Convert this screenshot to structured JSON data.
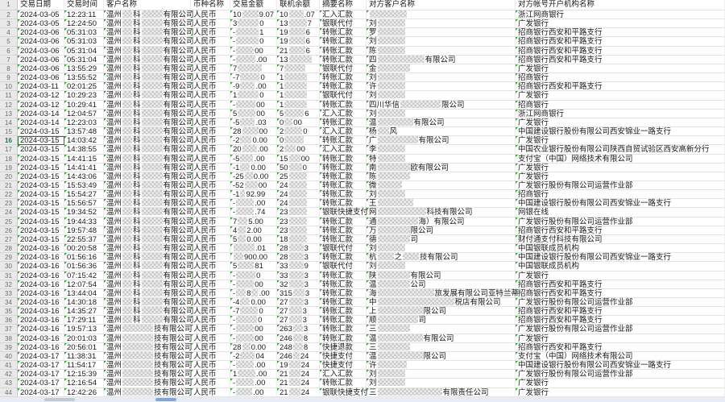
{
  "colors": {
    "error_indicator_green": "#2fa32f",
    "selection_green": "#217346"
  },
  "header": {
    "row_label": "1",
    "cols": [
      "交易日期",
      "交易时间",
      "客户名称",
      "币种名称",
      "交易金额",
      "联机余额",
      "摘要名称",
      "对方客户名称",
      "对方帐号开户机构名称"
    ]
  },
  "customer_patterns": {
    "p1": [
      "温州",
      12,
      "科",
      26,
      "有限公司"
    ],
    "p2": [
      "温州",
      38,
      "技有限公司"
    ]
  },
  "selected": {
    "row": 16,
    "col": "date"
  },
  "rows": [
    {
      "n": 2,
      "date": "2024-03-05",
      "time": "12:23:11",
      "cust": "p1",
      "cur": "人民币",
      "amt": [
        "10",
        20,
        "9.07"
      ],
      "bal": [
        "10",
        18,
        ".07"
      ],
      "sum": "汇入汇款",
      "cp": [
        46
      ],
      "bank": "浙江网商银行"
    },
    {
      "n": 3,
      "date": "2024-03-05",
      "time": "12:24:50",
      "cust": "p1",
      "cur": "人民币",
      "amt": [
        "3",
        26,
        "0"
      ],
      "bal": [
        "13",
        22,
        "7"
      ],
      "sum": "银联代付",
      "cp": [
        "刘",
        34
      ],
      "bank": "广发银行"
    },
    {
      "n": 4,
      "date": "2024-03-06",
      "time": "05:31:03",
      "cust": "p1",
      "cur": "人民币",
      "amt": [
        "-",
        28,
        "1"
      ],
      "bal": [
        "19",
        20,
        "6"
      ],
      "sum": "转账汇款",
      "cp": [
        "罗",
        34
      ],
      "bank": "招商银行西安和平路支行"
    },
    {
      "n": 5,
      "date": "2024-03-06",
      "time": "05:31:03",
      "cust": "p1",
      "cur": "人民币",
      "amt": [
        "-",
        28,
        "0"
      ],
      "bal": [
        "19",
        20,
        "6"
      ],
      "sum": "转账汇款",
      "cp": [
        "刘",
        34
      ],
      "bank": "招商银行西安和平路支行"
    },
    {
      "n": 6,
      "date": "2024-03-06",
      "time": "05:31:04",
      "cust": "p1",
      "cur": "人民币",
      "amt": [
        "-",
        22,
        "00"
      ],
      "bal": [
        "21",
        20,
        "6"
      ],
      "sum": "转账汇款",
      "cp": [
        "陈",
        34
      ],
      "bank": "招商银行西安和平路支行"
    },
    {
      "n": 7,
      "date": "2024-03-06",
      "time": "05:31:04",
      "cust": "p1",
      "cur": "人民币",
      "amt": [
        "-",
        24,
        ".00"
      ],
      "bal": [
        "13",
        28
      ],
      "sum": "转账汇款",
      "cp": [
        "四",
        58,
        "有限公司"
      ],
      "bank": "招商银行西安和平路支行"
    },
    {
      "n": 8,
      "date": "2024-03-06",
      "time": "13:55:29",
      "cust": "p1",
      "cur": "人民币",
      "amt": [
        "7",
        30
      ],
      "bal": [
        "7",
        26
      ],
      "sum": "银联代付",
      "cp": [
        "金",
        40
      ],
      "bank": "广发银行"
    },
    {
      "n": 9,
      "date": "2024-03-06",
      "time": "13:55:52",
      "cust": "p1",
      "cur": "人民币",
      "amt": [
        "-7",
        24,
        "0"
      ],
      "bal": [
        "1",
        28
      ],
      "sum": "转账汇款",
      "cp": [
        "刘",
        34
      ],
      "bank": "招商银行"
    },
    {
      "n": 10,
      "date": "2024-03-11",
      "time": "02:01:25",
      "cust": "p1",
      "cur": "人民币",
      "amt": [
        "-9",
        18,
        ".00"
      ],
      "bal": [
        "1",
        28
      ],
      "sum": "转账汇款",
      "cp": [
        "许",
        34
      ],
      "bank": "招商银行西安和平路支行"
    },
    {
      "n": 11,
      "date": "2024-03-12",
      "time": "10:29:23",
      "cust": "p1",
      "cur": "人民币",
      "amt": [
        "1",
        26,
        "0"
      ],
      "bal": [
        "1",
        28
      ],
      "sum": "银联代付",
      "cp": [
        "刘",
        34
      ],
      "bank": "广发银行"
    },
    {
      "n": 12,
      "date": "2024-03-12",
      "time": "10:29:41",
      "cust": "p1",
      "cur": "人民币",
      "amt": [
        "-",
        24,
        "00"
      ],
      "bal": [
        "1",
        28
      ],
      "sum": "转账汇款",
      "cp": [
        "四川华信",
        50,
        "限公司"
      ],
      "bank": "招商银行"
    },
    {
      "n": 13,
      "date": "2024-03-14",
      "time": "12:04:57",
      "cust": "p1",
      "cur": "人民币",
      "amt": [
        "5",
        22,
        "00"
      ],
      "bal": [
        "5",
        24,
        "6"
      ],
      "sum": "汇入汇款",
      "cp": [
        "刘",
        34
      ],
      "bank": "浙江网商银行"
    },
    {
      "n": 14,
      "date": "2024-03-14",
      "time": "12:23:03",
      "cust": "p1",
      "cur": "人民币",
      "amt": [
        "-5",
        18,
        ".03"
      ],
      "bal": [
        "0",
        10,
        "00"
      ],
      "sum": "转账汇款",
      "cp": [
        "温",
        44,
        "有限公司"
      ],
      "bank": "广发银行"
    },
    {
      "n": 15,
      "date": "2024-03-15",
      "time": "13:57:48",
      "cust": "p1",
      "cur": "人民币",
      "amt": [
        "28",
        20,
        "00"
      ],
      "bal": [
        "2",
        22,
        "0"
      ],
      "sum": "汇入汇款",
      "cp": [
        "杨",
        14,
        "风"
      ],
      "bank": "中国建设银行股份有限公司西安锦业一路支行"
    },
    {
      "n": 16,
      "date": "2024-03-15",
      "time": "14:03:42",
      "cust": "p1",
      "cur": "人民币",
      "amt": [
        "-2",
        14,
        "0.00"
      ],
      "bal": [
        "0",
        24
      ],
      "sum": "转账汇款",
      "cp": [
        "广",
        50,
        "有限公司"
      ],
      "bank": "广发银行"
    },
    {
      "n": 17,
      "date": "2024-03-15",
      "time": "14:38:55",
      "cust": "p1",
      "cur": "人民币",
      "amt": [
        "20",
        18,
        ".00"
      ],
      "bal": [
        "2",
        14,
        "00"
      ],
      "sum": "汇入汇款",
      "cp": [
        "李",
        34
      ],
      "bank": "中国农业银行股份有限公司陕西自贸试验区西安高新分行"
    },
    {
      "n": 18,
      "date": "2024-03-15",
      "time": "14:41:15",
      "cust": "p1",
      "cur": "人民币",
      "amt": [
        "-5",
        16,
        ".00"
      ],
      "bal": [
        "15",
        14,
        "00"
      ],
      "sum": "转账汇款",
      "cp": [
        "特",
        34
      ],
      "bank": "支付宝（中国）网络技术有限公司"
    },
    {
      "n": 19,
      "date": "2024-03-15",
      "time": "14:41:41",
      "cust": "p1",
      "cur": "人民币",
      "amt": [
        "-1",
        12,
        "0.00"
      ],
      "bal": [
        "50",
        16,
        "0"
      ],
      "sum": "转账汇款",
      "cp": [
        "南",
        40,
        "欧有限公司"
      ],
      "bank": "广发银行"
    },
    {
      "n": 20,
      "date": "2024-03-15",
      "time": "14:43:06",
      "cust": "p1",
      "cur": "人民币",
      "amt": [
        "-25",
        10,
        "0.00"
      ],
      "bal": [
        "25",
        22
      ],
      "sum": "转账汇款",
      "cp": [
        "陈",
        40
      ],
      "bank": "广发银行"
    },
    {
      "n": 21,
      "date": "2024-03-15",
      "time": "15:53:49",
      "cust": "p1",
      "cur": "人民币",
      "amt": [
        "-52",
        16,
        "00"
      ],
      "bal": [
        "24",
        22
      ],
      "sum": "转账汇款",
      "cp": [
        "微",
        30
      ],
      "bank": "广发银行股份有限公司运营作业部"
    },
    {
      "n": 22,
      "date": "2024-03-15",
      "time": "15:54:27",
      "cust": "p1",
      "cur": "人民币",
      "amt": [
        "-1",
        6,
        "92.99"
      ],
      "bal": [
        "24",
        22
      ],
      "sum": "转账汇款",
      "cp": [
        "刘",
        34
      ],
      "bank": "招商银行"
    },
    {
      "n": 23,
      "date": "2024-03-15",
      "time": "15:56:57",
      "cust": "p1",
      "cur": "人民币",
      "amt": [
        "-",
        22,
        ".00"
      ],
      "bal": [
        "24",
        22
      ],
      "sum": "转账汇款",
      "cp": [
        "王",
        44
      ],
      "bank": "中国建设银行股份有限公司西安锦业一路支行"
    },
    {
      "n": 24,
      "date": "2024-03-15",
      "time": "19:34:52",
      "cust": "p1",
      "cur": "人民币",
      "amt": [
        "-",
        22,
        ".74"
      ],
      "bal": [
        "23",
        22
      ],
      "sum": "银联快捷支付",
      "cp": [
        "网",
        60,
        "科技有限公司"
      ],
      "bank": "网银在线"
    },
    {
      "n": 25,
      "date": "2024-03-15",
      "time": "19:44:33",
      "cust": "p1",
      "cur": "人民币",
      "amt": [
        "7",
        12,
        "5.00"
      ],
      "bal": [
        "23",
        22
      ],
      "sum": "转账汇款",
      "cp": [
        "通",
        50,
        "海）有限公司"
      ],
      "bank": "广发银行股份有限公司运营作业部"
    },
    {
      "n": 26,
      "date": "2024-03-15",
      "time": "19:57:48",
      "cust": "p1",
      "cur": "人民币",
      "amt": [
        "4",
        10,
        "2.00"
      ],
      "bal": [
        "23",
        22
      ],
      "sum": "转账汇款",
      "cp": [
        "万",
        40,
        "限公司"
      ],
      "bank": "招商银行西安和平路支行"
    },
    {
      "n": 27,
      "date": "2024-03-15",
      "time": "22:55:37",
      "cust": "p1",
      "cur": "人民币",
      "amt": [
        "5",
        10,
        "0.00"
      ],
      "bal": [
        "18",
        22
      ],
      "sum": "转账汇款",
      "cp": [
        "德",
        40,
        "司"
      ],
      "bank": "财付通支付科技有限公司"
    },
    {
      "n": 28,
      "date": "2024-03-16",
      "time": "00:20:58",
      "cust": "p1",
      "cur": "人民币",
      "amt": [
        26,
        ".01"
      ],
      "bal": [
        "28",
        18,
        "3"
      ],
      "sum": "银联代付",
      "cp": [
        "刘",
        34
      ],
      "bank": "中国银联成员机构"
    },
    {
      "n": 29,
      "date": "2024-03-16",
      "time": "01:56:16",
      "cust": "p1",
      "cur": "人民币",
      "amt": [
        12,
        "900.00"
      ],
      "bal": [
        "28",
        18,
        "3"
      ],
      "sum": "转账汇款",
      "cp": [
        "杭",
        20,
        "之",
        20,
        "技有限公司"
      ],
      "bank": "中国建设银行股份有限公司西安锦业一路支行"
    },
    {
      "n": 30,
      "date": "2024-03-16",
      "time": "01:56:36",
      "cust": "p1",
      "cur": "人民币",
      "amt": [
        "5",
        20,
        "81"
      ],
      "bal": [
        "33",
        18,
        "9"
      ],
      "sum": "银联代付",
      "cp": [
        "刘",
        34
      ],
      "bank": "中国银联成员机构"
    },
    {
      "n": 31,
      "date": "2024-03-16",
      "time": "07:15:42",
      "cust": "p1",
      "cur": "人民币",
      "amt": [
        "-",
        24,
        "0"
      ],
      "bal": [
        "33",
        18,
        "3"
      ],
      "sum": "转账汇款",
      "cp": [
        "陕",
        40,
        "有限公司"
      ],
      "bank": "广发银行"
    },
    {
      "n": 32,
      "date": "2024-03-16",
      "time": "12:07:54",
      "cust": "p1",
      "cur": "人民币",
      "amt": [
        "-",
        22,
        "00"
      ],
      "bal": [
        "32",
        18,
        "3"
      ],
      "sum": "转账汇款",
      "cp": [
        "温",
        40,
        "公司"
      ],
      "bank": "招商银行西安和平路支行"
    },
    {
      "n": 33,
      "date": "2024-03-16",
      "time": "13:44:04",
      "cust": "p1",
      "cur": "人民币",
      "amt": [
        "-",
        12,
        "8",
        8,
        ".00"
      ],
      "bal": [
        "315",
        14,
        "3"
      ],
      "sum": "转账汇款",
      "cp": [
        "海",
        70,
        "旅发展有限公司亚特兰蒂"
      ],
      "bank": "招商银行西安和平路支行"
    },
    {
      "n": 34,
      "date": "2024-03-16",
      "time": "14:30:18",
      "cust": "p1",
      "cur": "人民币",
      "amt": [
        "-4",
        12,
        "0.00"
      ],
      "bal": [
        "27",
        18,
        "3"
      ],
      "sum": "转账汇款",
      "cp": [
        "中",
        95,
        "税店有限公司"
      ],
      "bank": "广发银行股份有限公司运营作业部"
    },
    {
      "n": 35,
      "date": "2024-03-16",
      "time": "14:35:27",
      "cust": "p1",
      "cur": "人民币",
      "amt": [
        "-7",
        22,
        "0"
      ],
      "bal": [
        "27",
        16,
        "3"
      ],
      "sum": "转账汇款",
      "cp": [
        "上",
        56,
        "限公司"
      ],
      "bank": "招商银行西安和平路支行"
    },
    {
      "n": 36,
      "date": "2024-03-16",
      "time": "17:29:11",
      "cust": "p1",
      "cur": "人民币",
      "amt": [
        "-",
        26,
        "0"
      ],
      "bal": [
        "27",
        16,
        "3"
      ],
      "sum": "转账汇款",
      "cp": [
        "顺",
        50,
        "司"
      ],
      "bank": "招商银行西安和平路支行"
    },
    {
      "n": 37,
      "date": "2024-03-16",
      "time": "19:57:13",
      "cust": "p2",
      "cur": "人民币",
      "amt": [
        "-",
        22,
        "00"
      ],
      "bal": [
        "263",
        12,
        "3"
      ],
      "sum": "转账汇款",
      "cp": [
        "三",
        40
      ],
      "bank": "广发银行股份有限公司运营作业部"
    },
    {
      "n": 38,
      "date": "2024-03-16",
      "time": "20:01:03",
      "cust": "p2",
      "cur": "人民币",
      "amt": [
        "-",
        22,
        "00"
      ],
      "bal": [
        "246",
        12,
        "8"
      ],
      "sum": "转账汇款",
      "cp": [
        "温",
        56,
        "有限公司"
      ],
      "bank": "广发银行"
    },
    {
      "n": 39,
      "date": "2024-03-16",
      "time": "20:56:01",
      "cust": "p2",
      "cur": "人民币",
      "amt": [
        "28",
        10,
        "0.00"
      ],
      "bal": [
        "248",
        12,
        "8"
      ],
      "sum": "快捷退款",
      "cp": [
        "三",
        40
      ],
      "bank": "招商银行西安和平路支行"
    },
    {
      "n": 40,
      "date": "2024-03-17",
      "time": "11:38:31",
      "cust": "p2",
      "cur": "人民币",
      "amt": [
        "-2",
        18,
        "04"
      ],
      "bal": [
        "246",
        8,
        "24"
      ],
      "sum": "快捷支付",
      "cp": [
        "温",
        56,
        "限公司"
      ],
      "bank": "支付宝（中国）网络技术有限公司"
    },
    {
      "n": 41,
      "date": "2024-03-17",
      "time": "11:54:17",
      "cust": "p2",
      "cur": "人民币",
      "amt": [
        "-",
        22,
        ".00"
      ],
      "bal": [
        "19",
        14,
        "24"
      ],
      "sum": "快捷支付",
      "cp": [
        "许",
        36
      ],
      "bank": "中国建设银行股份有限公司西安锦业一路支行"
    },
    {
      "n": 42,
      "date": "2024-03-17",
      "time": "12:15:39",
      "cust": "p2",
      "cur": "人民币",
      "amt": [
        "1",
        22,
        ".00"
      ],
      "bal": [
        "21",
        14,
        "24"
      ],
      "sum": "汇入汇款",
      "cp": [
        "刘",
        34
      ],
      "bank": "广发银行股份有限公司运营作业部"
    },
    {
      "n": 43,
      "date": "2024-03-17",
      "time": "12:16:54",
      "cust": "p2",
      "cur": "人民币",
      "amt": [
        "-",
        22,
        ".00"
      ],
      "bal": [
        "21",
        14,
        "24"
      ],
      "sum": "转账汇款",
      "cp": [
        "刘",
        34
      ],
      "bank": "广发银行"
    },
    {
      "n": 44,
      "date": "2024-03-17",
      "time": "12:42:26",
      "cust": "p2",
      "cur": "人民币",
      "amt": [
        "-",
        20,
        ".00"
      ],
      "bal": [
        "21",
        14,
        "24"
      ],
      "sum": "银联快捷支付",
      "cp": [
        "三",
        80,
        "有限责任公司"
      ],
      "bank": "广发银行"
    }
  ]
}
